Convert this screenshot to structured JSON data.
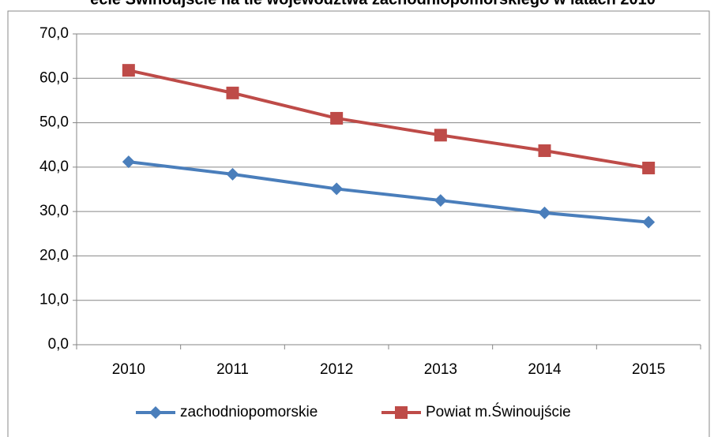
{
  "chart_data": {
    "type": "line",
    "title": "ecie Świnoujście na tle województwa zachodniopomorskiego w latach 2010",
    "categories": [
      "2010",
      "2011",
      "2012",
      "2013",
      "2014",
      "2015"
    ],
    "series": [
      {
        "name": "zachodniopomorskie",
        "color": "#4a7ebb",
        "marker": "diamond",
        "values": [
          41.2,
          38.4,
          35.1,
          32.5,
          29.7,
          27.6
        ]
      },
      {
        "name": "Powiat m.Świnoujście",
        "color": "#be4b48",
        "marker": "square",
        "values": [
          61.8,
          56.7,
          51.0,
          47.2,
          43.7,
          39.8
        ]
      }
    ],
    "ylim": [
      0,
      70
    ],
    "yticks": [
      {
        "value": 0,
        "label": "0,0"
      },
      {
        "value": 10,
        "label": "10,0"
      },
      {
        "value": 20,
        "label": "20,0"
      },
      {
        "value": 30,
        "label": "30,0"
      },
      {
        "value": 40,
        "label": "40,0"
      },
      {
        "value": 50,
        "label": "50,0"
      },
      {
        "value": 60,
        "label": "60,0"
      },
      {
        "value": 70,
        "label": "70,0"
      }
    ],
    "grid": true,
    "legend": "bottom"
  }
}
